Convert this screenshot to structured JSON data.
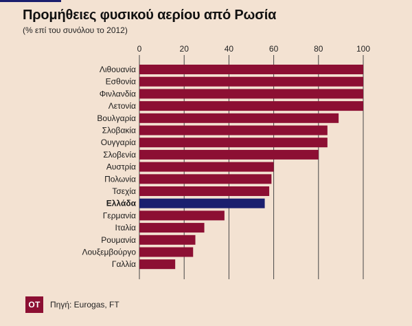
{
  "header": {
    "title": "Προμήθειες φυσικού αερίου από Ρωσία",
    "subtitle": "(% επί του συνόλου το 2012)"
  },
  "footer": {
    "logo_text": "OT",
    "source": "Πηγή: Eurogas, FT"
  },
  "colors": {
    "bar": "#8c0f33",
    "highlight": "#1b1f6e",
    "background": "#f3e2d2",
    "grid": "#444444"
  },
  "chart_data": {
    "type": "bar",
    "orientation": "horizontal",
    "title": "Προμήθειες φυσικού αερίου από Ρωσία",
    "subtitle": "(% επί του συνόλου το 2012)",
    "xlim": [
      0,
      100
    ],
    "x_ticks": [
      0,
      20,
      40,
      60,
      80,
      100
    ],
    "x_axis_position": "top",
    "grid": true,
    "highlighted_category": "Ελλάδα",
    "categories": [
      "Λιθουανία",
      "Εσθονία",
      "Φινλανδία",
      "Λετονία",
      "Βουλγαρία",
      "Σλοβακία",
      "Ουγγαρία",
      "Σλοβενία",
      "Αυστρία",
      "Πολωνία",
      "Τσεχία",
      "Ελλάδα",
      "Γερμανία",
      "Ιταλία",
      "Ρουμανία",
      "Λουξεμβούργο",
      "Γαλλία"
    ],
    "values": [
      100,
      100,
      100,
      100,
      89,
      84,
      84,
      80,
      60,
      59,
      58,
      56,
      38,
      29,
      25,
      24,
      16
    ]
  }
}
